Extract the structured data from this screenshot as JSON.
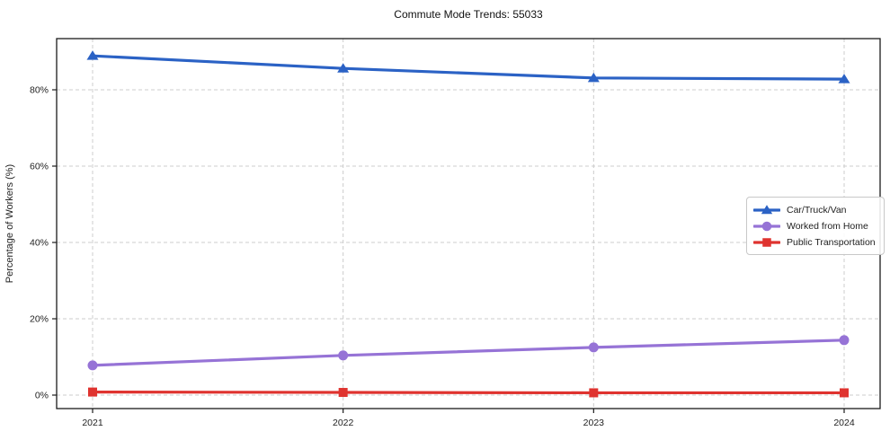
{
  "chart_data": {
    "type": "line",
    "title": "Commute Mode Trends: 55033",
    "xlabel": "",
    "ylabel": "Percentage of Workers (%)",
    "x_tick_labels": [
      "2021",
      "2022",
      "2023",
      "2024"
    ],
    "y_ticks": [
      0,
      20,
      40,
      60,
      80
    ],
    "y_tick_labels": [
      "0%",
      "20%",
      "40%",
      "60%",
      "80%"
    ],
    "ylim": [
      -3.5,
      93.4
    ],
    "grid": "dashed both axes",
    "legend_position": "center right",
    "colors": {
      "grid": "#cccccc",
      "spine": "#1a1a1a",
      "text": "#222222",
      "background": "#ffffff"
    },
    "series": [
      {
        "name": "Car/Truck/Van",
        "color": "#2b62c5",
        "marker": "triangle",
        "values": [
          88.9,
          85.6,
          83.1,
          82.8
        ]
      },
      {
        "name": "Worked from Home",
        "color": "#9673d6",
        "marker": "circle",
        "values": [
          7.8,
          10.4,
          12.5,
          14.4
        ]
      },
      {
        "name": "Public Transportation",
        "color": "#df332f",
        "marker": "square",
        "values": [
          0.8,
          0.7,
          0.6,
          0.6
        ]
      }
    ]
  }
}
